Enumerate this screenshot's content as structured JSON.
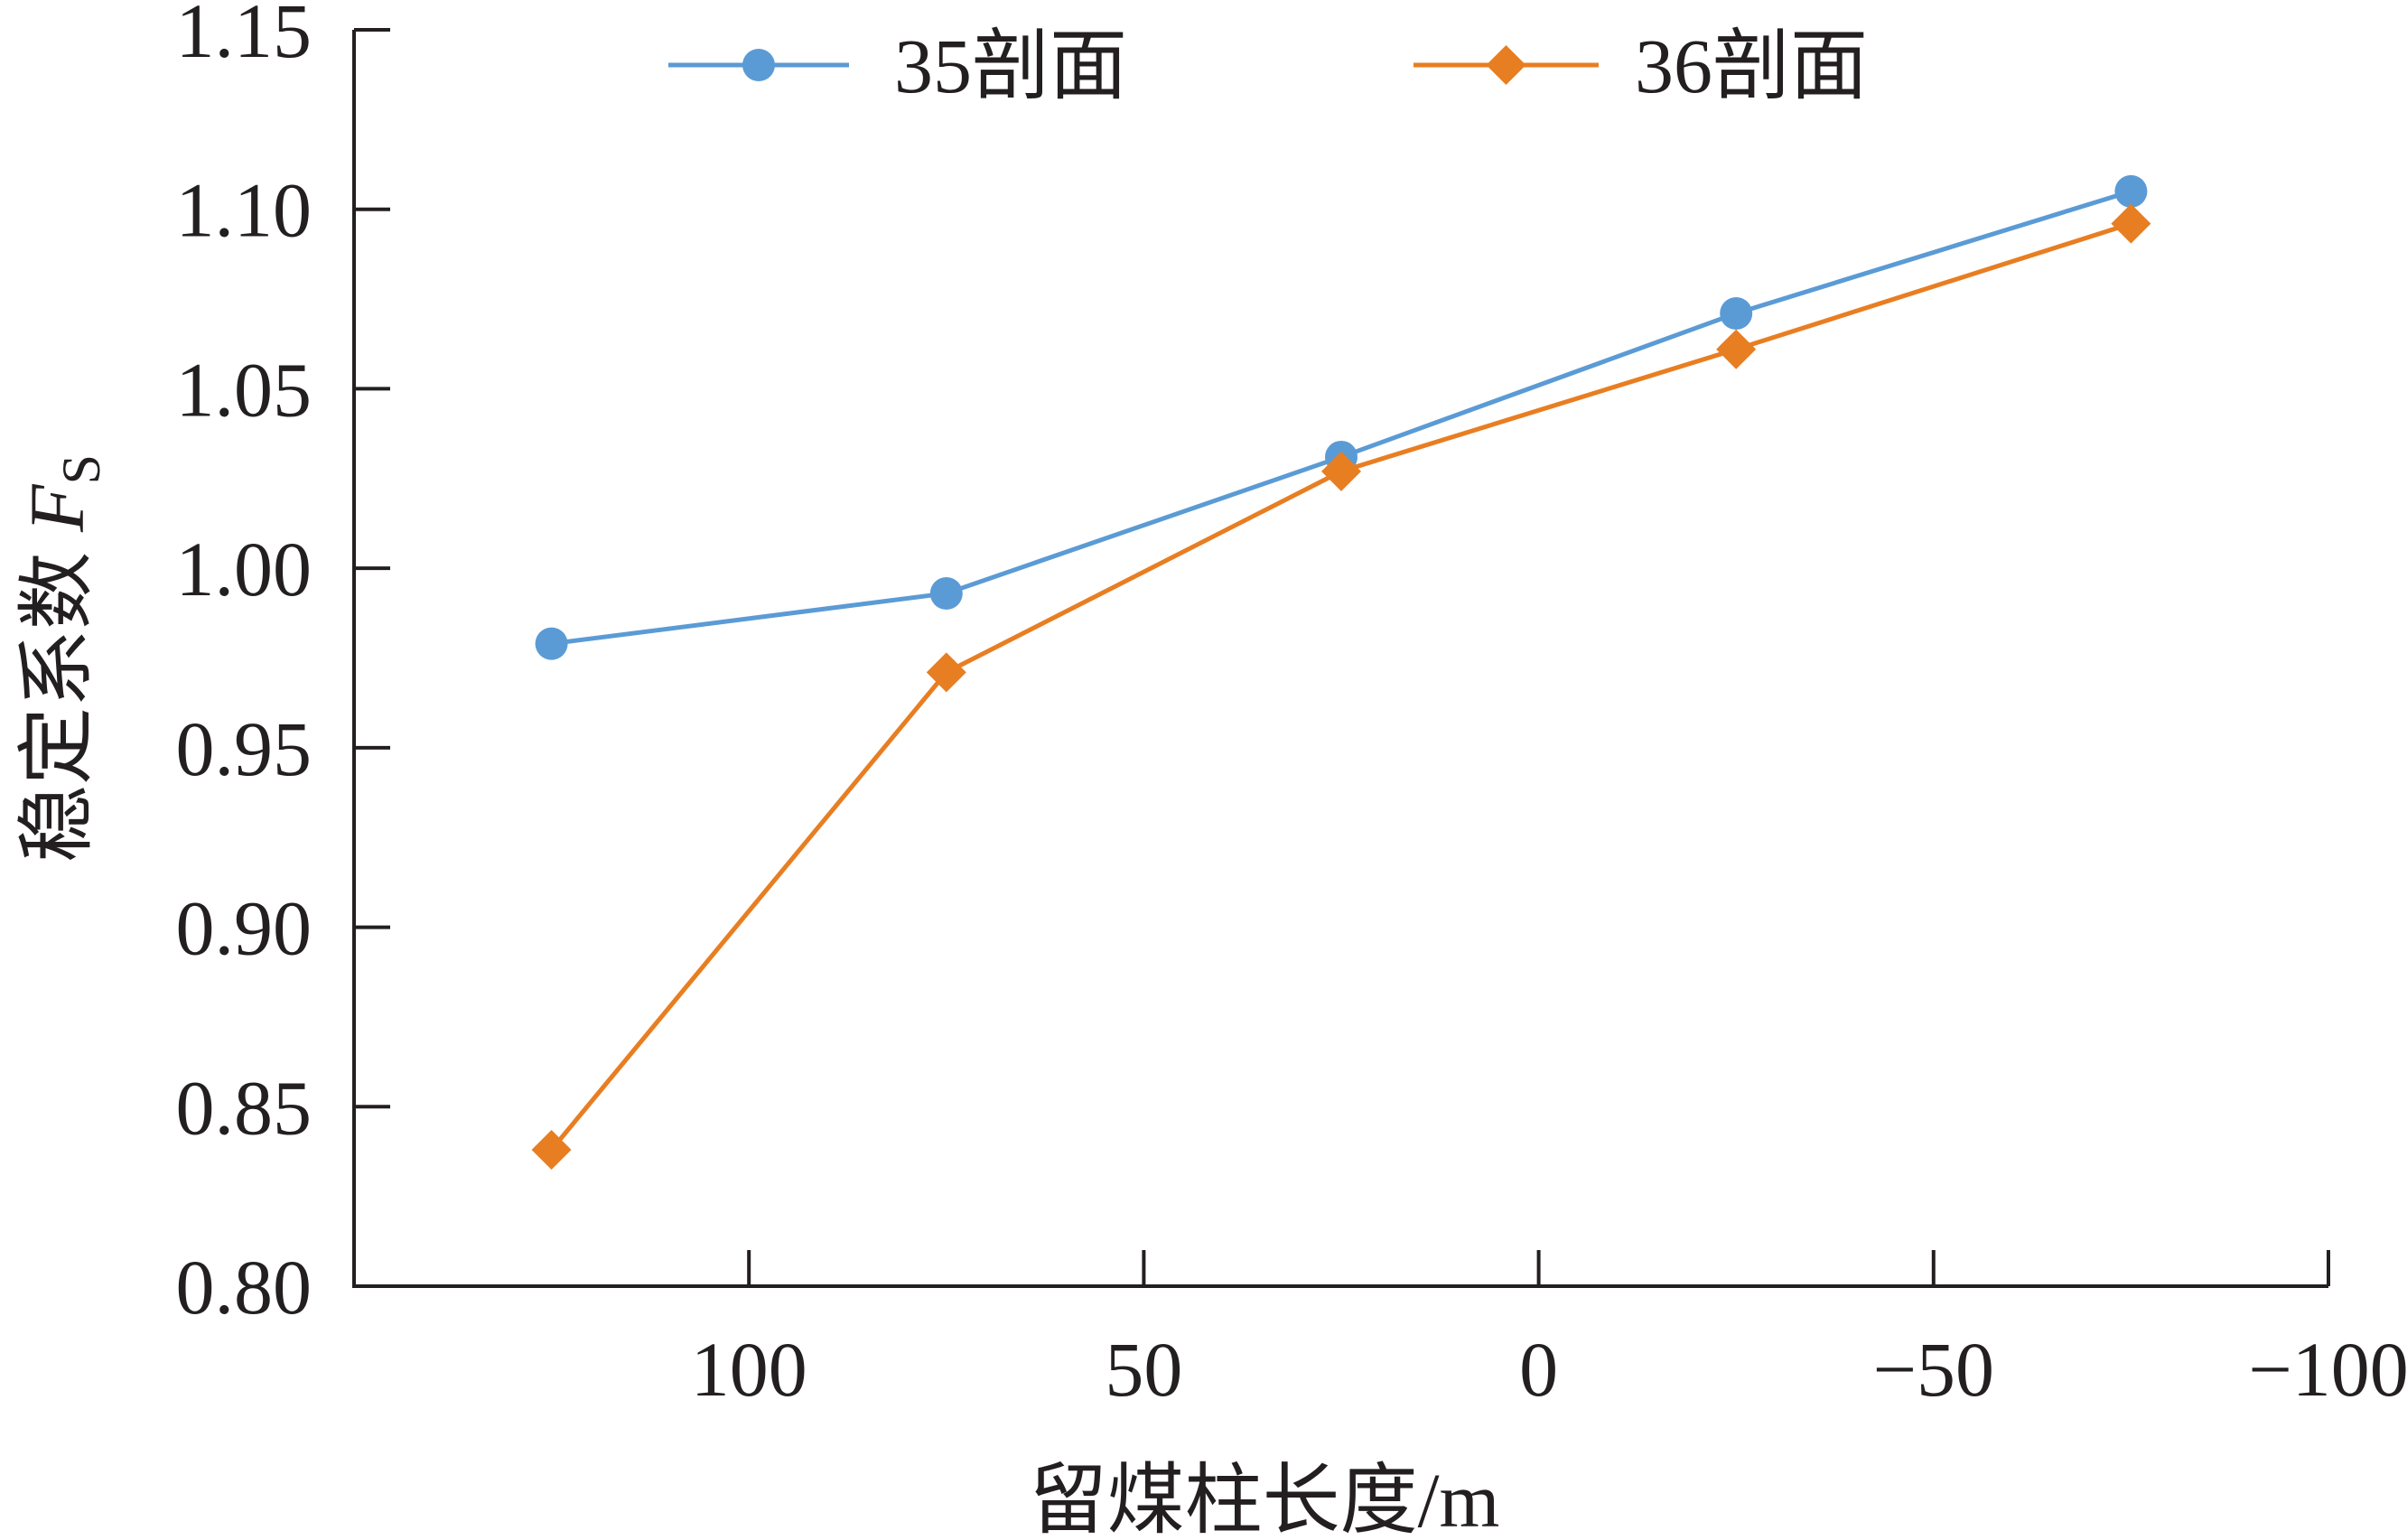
{
  "chart_data": {
    "type": "line",
    "x": [
      125,
      75,
      25,
      -25,
      -75
    ],
    "xlim": [
      150,
      -100
    ],
    "x_ticks": [
      100,
      50,
      0,
      -50,
      -100
    ],
    "x_tick_labels": [
      "100",
      "50",
      "0",
      "−50",
      "−100"
    ],
    "ylim": [
      0.8,
      1.15
    ],
    "y_ticks": [
      0.8,
      0.85,
      0.9,
      0.95,
      1.0,
      1.05,
      1.1,
      1.15
    ],
    "y_tick_labels": [
      "0.80",
      "0.85",
      "0.90",
      "0.95",
      "1.00",
      "1.05",
      "1.10",
      "1.15"
    ],
    "xlabel": "留煤柱长度/m",
    "ylabel": "稳定系数",
    "ylabel_symbol": "F",
    "ylabel_subscript": "S",
    "legend_position": "top",
    "grid": false,
    "series": [
      {
        "name": "35剖面",
        "color": "#5b9bd5",
        "marker": "circle",
        "values": [
          0.979,
          0.993,
          1.031,
          1.071,
          1.105
        ]
      },
      {
        "name": "36剖面",
        "color": "#e87e22",
        "marker": "diamond",
        "values": [
          0.838,
          0.971,
          1.027,
          1.061,
          1.096
        ]
      }
    ]
  }
}
